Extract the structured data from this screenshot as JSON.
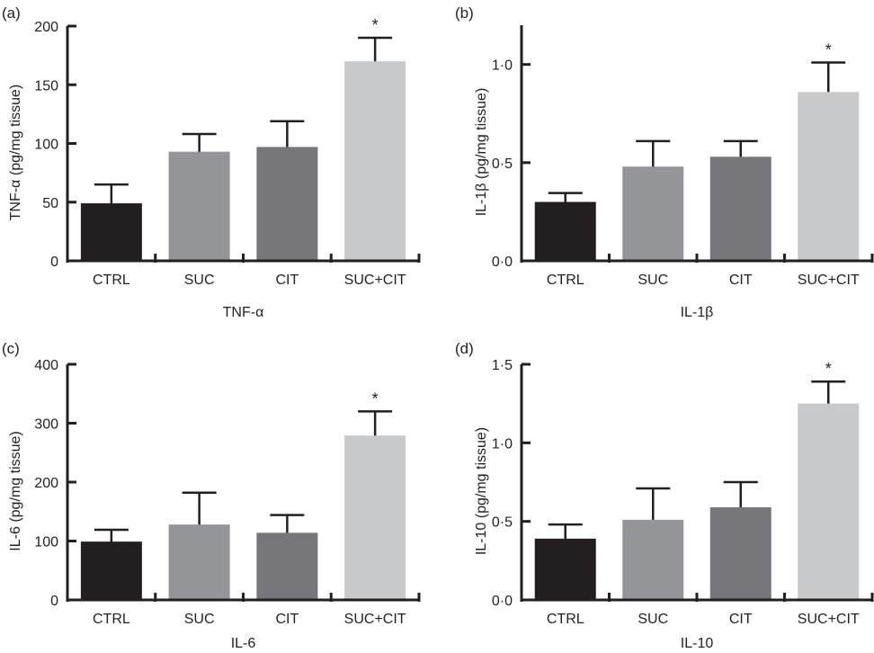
{
  "colors": {
    "CTRL": "#231f20",
    "SUC": "#939598",
    "CIT": "#77777b",
    "SUC+CIT": "#c8c9cb",
    "axis": "#231f20"
  },
  "chart_data": [
    {
      "type": "bar",
      "panel_label": "(a)",
      "title": "",
      "xlabel": "TNF-α",
      "ylabel": "TNF-α (pg/mg tissue)",
      "categories": [
        "CTRL",
        "SUC",
        "CIT",
        "SUC+CIT"
      ],
      "values": [
        49,
        93,
        97,
        170
      ],
      "error_upper": [
        65,
        108,
        119,
        190
      ],
      "annotations": [
        "",
        "",
        "",
        "*"
      ],
      "ylim": [
        0,
        200
      ],
      "yticks": [
        0,
        50,
        100,
        150,
        200
      ],
      "ytick_labels": [
        "0",
        "50",
        "100",
        "150",
        "200"
      ],
      "grid": false
    },
    {
      "type": "bar",
      "panel_label": "(b)",
      "title": "",
      "xlabel": "IL-1β",
      "ylabel": "IL-1β (pg/mg tissue)",
      "categories": [
        "CTRL",
        "SUC",
        "CIT",
        "SUC+CIT"
      ],
      "values": [
        0.3,
        0.48,
        0.53,
        0.86
      ],
      "error_upper": [
        0.345,
        0.61,
        0.61,
        1.01
      ],
      "annotations": [
        "",
        "",
        "",
        "*"
      ],
      "ylim": [
        0,
        1.2
      ],
      "yticks": [
        0,
        0.5,
        1.0
      ],
      "ytick_labels": [
        "0·0",
        "0·5",
        "1·0"
      ],
      "grid": false
    },
    {
      "type": "bar",
      "panel_label": "(c)",
      "title": "",
      "xlabel": "IL-6",
      "ylabel": "IL-6 (pg/mg tissue)",
      "categories": [
        "CTRL",
        "SUC",
        "CIT",
        "SUC+CIT"
      ],
      "values": [
        99,
        128,
        114,
        279
      ],
      "error_upper": [
        119,
        182,
        144,
        320
      ],
      "annotations": [
        "",
        "",
        "",
        "*"
      ],
      "ylim": [
        0,
        400
      ],
      "yticks": [
        0,
        100,
        200,
        300,
        400
      ],
      "ytick_labels": [
        "0",
        "100",
        "200",
        "300",
        "400"
      ],
      "grid": false
    },
    {
      "type": "bar",
      "panel_label": "(d)",
      "title": "",
      "xlabel": "IL-10",
      "ylabel": "IL-10 (pg/mg tissue)",
      "categories": [
        "CTRL",
        "SUC",
        "CIT",
        "SUC+CIT"
      ],
      "values": [
        0.39,
        0.51,
        0.59,
        1.25
      ],
      "error_upper": [
        0.48,
        0.71,
        0.75,
        1.39
      ],
      "annotations": [
        "",
        "",
        "",
        "*"
      ],
      "ylim": [
        0,
        1.5
      ],
      "yticks": [
        0,
        0.5,
        1.0,
        1.5
      ],
      "ytick_labels": [
        "0·0",
        "0·5",
        "1·0",
        "1·5"
      ],
      "grid": false
    }
  ]
}
